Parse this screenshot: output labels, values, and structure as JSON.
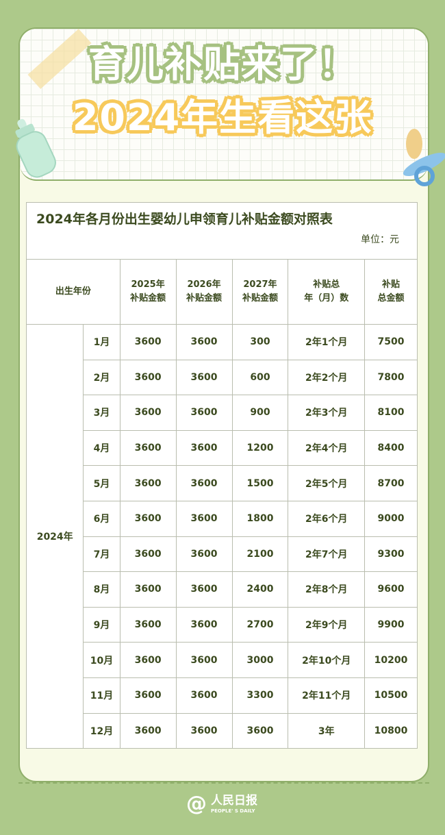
{
  "poster": {
    "title_line1": "育儿补贴来了！",
    "title_line2": "2024年生看这张",
    "colors": {
      "background": "#adc98a",
      "card": "#f8fae6",
      "text": "#3b4a1f",
      "title_outline_green": "#a6c181",
      "title_outline_yellow": "#f7c95a"
    }
  },
  "table": {
    "caption": "2024年各月份出生婴幼儿申领育儿补贴金额对照表",
    "unit": "单位：元",
    "headers": {
      "birth": "出生年份",
      "y2025": [
        "2025年",
        "补贴金额"
      ],
      "y2026": [
        "2026年",
        "补贴金额"
      ],
      "y2027": [
        "2027年",
        "补贴金额"
      ],
      "duration": [
        "补贴总",
        "年（月）数"
      ],
      "total": [
        "补贴",
        "总金额"
      ]
    },
    "year": "2024年",
    "rows": [
      {
        "month": "1月",
        "y2025": "3600",
        "y2026": "3600",
        "y2027": "300",
        "duration": "2年1个月",
        "total": "7500"
      },
      {
        "month": "2月",
        "y2025": "3600",
        "y2026": "3600",
        "y2027": "600",
        "duration": "2年2个月",
        "total": "7800"
      },
      {
        "month": "3月",
        "y2025": "3600",
        "y2026": "3600",
        "y2027": "900",
        "duration": "2年3个月",
        "total": "8100"
      },
      {
        "month": "4月",
        "y2025": "3600",
        "y2026": "3600",
        "y2027": "1200",
        "duration": "2年4个月",
        "total": "8400"
      },
      {
        "month": "5月",
        "y2025": "3600",
        "y2026": "3600",
        "y2027": "1500",
        "duration": "2年5个月",
        "total": "8700"
      },
      {
        "month": "6月",
        "y2025": "3600",
        "y2026": "3600",
        "y2027": "1800",
        "duration": "2年6个月",
        "total": "9000"
      },
      {
        "month": "7月",
        "y2025": "3600",
        "y2026": "3600",
        "y2027": "2100",
        "duration": "2年7个月",
        "total": "9300"
      },
      {
        "month": "8月",
        "y2025": "3600",
        "y2026": "3600",
        "y2027": "2400",
        "duration": "2年8个月",
        "total": "9600"
      },
      {
        "month": "9月",
        "y2025": "3600",
        "y2026": "3600",
        "y2027": "2700",
        "duration": "2年9个月",
        "total": "9900"
      },
      {
        "month": "10月",
        "y2025": "3600",
        "y2026": "3600",
        "y2027": "3000",
        "duration": "2年10个月",
        "total": "10200"
      },
      {
        "month": "11月",
        "y2025": "3600",
        "y2026": "3600",
        "y2027": "3300",
        "duration": "2年11个月",
        "total": "10500"
      },
      {
        "month": "12月",
        "y2025": "3600",
        "y2026": "3600",
        "y2027": "3600",
        "duration": "3年",
        "total": "10800"
      }
    ]
  },
  "footer": {
    "logo_at": "@",
    "logo_name": "人民日报",
    "logo_en": "PEOPLE' S DAILY"
  }
}
